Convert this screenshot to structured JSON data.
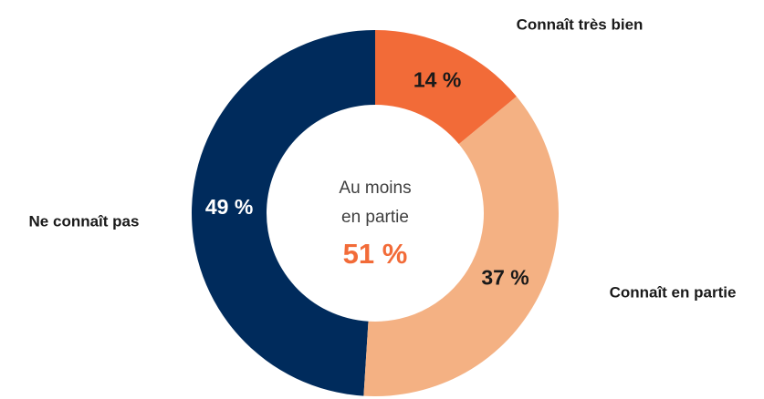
{
  "chart_data": {
    "type": "donut",
    "categories": [
      "Connaît très bien",
      "Connaît en partie",
      "Ne connaît pas"
    ],
    "values": [
      14,
      37,
      49
    ],
    "value_labels": [
      "14 %",
      "37 %",
      "49 %"
    ],
    "colors": [
      "#f26b38",
      "#f4b183",
      "#002b5c"
    ],
    "label_colors": [
      "#1a1a1a",
      "#1a1a1a",
      "#ffffff"
    ],
    "annotations": [
      "Au moins",
      "en partie",
      "51 %"
    ]
  }
}
